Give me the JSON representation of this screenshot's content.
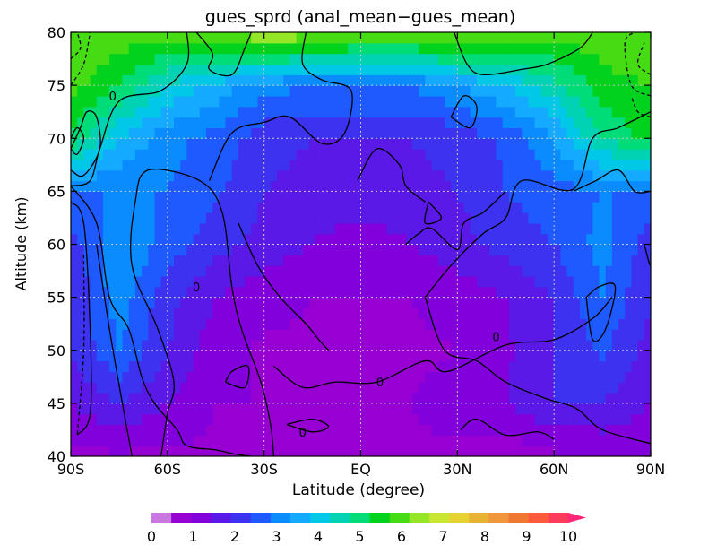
{
  "chart_data": {
    "type": "heatmap",
    "title": "gues_sprd (anal_mean−gues_mean)",
    "xlabel": "Latitude (degree)",
    "ylabel": "Altitude (km)",
    "xlim": [
      -90,
      90
    ],
    "ylim": [
      40,
      80
    ],
    "grid": true,
    "x_ticks": [
      {
        "value": -90,
        "label": "90S"
      },
      {
        "value": -60,
        "label": "60S"
      },
      {
        "value": -30,
        "label": "30S"
      },
      {
        "value": 0,
        "label": "EQ"
      },
      {
        "value": 30,
        "label": "30N"
      },
      {
        "value": 60,
        "label": "60N"
      },
      {
        "value": 90,
        "label": "90N"
      }
    ],
    "y_ticks": [
      40,
      45,
      50,
      55,
      60,
      65,
      70,
      75,
      80
    ],
    "colorbar": {
      "ticks": [
        "0",
        "1",
        "2",
        "3",
        "4",
        "5",
        "6",
        "7",
        "8",
        "9",
        "10"
      ],
      "extend": "max",
      "bins": 21,
      "colors": [
        "#c878e0",
        "#9600d2",
        "#8200dc",
        "#5a19e6",
        "#3c32f0",
        "#1e5aff",
        "#0a8cff",
        "#14aaff",
        "#00c8e6",
        "#00d2b4",
        "#00dc78",
        "#00d21e",
        "#46dc14",
        "#96e628",
        "#c8e632",
        "#e6d232",
        "#e6b432",
        "#f0963c",
        "#f07832",
        "#ff5a3c",
        "#ff3c5a",
        "#ff2878"
      ]
    },
    "field": {
      "latitudes": [
        -90,
        -75,
        -60,
        -45,
        -30,
        -15,
        0,
        15,
        30,
        45,
        60,
        75,
        90
      ],
      "altitudes": [
        40,
        45,
        50,
        55,
        60,
        65,
        70,
        75,
        80
      ],
      "values": [
        [
          0.9,
          0.9,
          0.9,
          0.9,
          0.9,
          0.9,
          0.9,
          0.9,
          0.9,
          0.6,
          0.9,
          1.0,
          1.0
        ],
        [
          1.5,
          2.0,
          1.5,
          1.0,
          1.0,
          1.0,
          1.0,
          1.0,
          1.2,
          1.5,
          2.0,
          2.0,
          1.5
        ],
        [
          2.0,
          3.0,
          2.0,
          1.2,
          0.9,
          0.9,
          0.9,
          0.9,
          1.0,
          1.4,
          2.0,
          2.6,
          1.8
        ],
        [
          2.0,
          3.3,
          2.2,
          1.5,
          1.2,
          1.0,
          1.0,
          1.0,
          1.2,
          1.5,
          2.0,
          3.0,
          2.0
        ],
        [
          2.2,
          3.5,
          2.8,
          2.2,
          1.8,
          1.5,
          1.2,
          1.5,
          1.8,
          2.2,
          2.5,
          3.2,
          2.2
        ],
        [
          3.0,
          3.0,
          3.0,
          2.6,
          2.0,
          1.8,
          1.8,
          1.8,
          2.0,
          2.5,
          2.8,
          3.0,
          3.0
        ],
        [
          5.5,
          4.0,
          3.2,
          2.8,
          2.2,
          2.0,
          2.0,
          2.0,
          2.2,
          2.6,
          3.5,
          5.0,
          5.8
        ],
        [
          6.2,
          5.5,
          4.5,
          3.8,
          3.2,
          3.0,
          3.0,
          3.0,
          3.5,
          4.0,
          4.8,
          5.8,
          6.0
        ],
        [
          6.5,
          6.3,
          6.2,
          6.5,
          7.0,
          6.8,
          6.5,
          6.5,
          6.8,
          6.5,
          6.2,
          6.3,
          6.5
        ]
      ]
    },
    "contour_labels": [
      {
        "text": "0",
        "x": -77,
        "y": 74
      },
      {
        "text": "0",
        "x": -51,
        "y": 56
      },
      {
        "text": "0",
        "x": 6,
        "y": 47
      },
      {
        "text": "0",
        "x": 42,
        "y": 51.3
      },
      {
        "text": "0",
        "x": -18,
        "y": 42.3
      }
    ],
    "contours": [
      [
        [
          -51,
          80
        ],
        [
          -46,
          78
        ],
        [
          -47,
          76.5
        ],
        [
          -40,
          76
        ],
        [
          -36,
          78.5
        ],
        [
          -34,
          80
        ]
      ],
      [
        [
          -90,
          65.5
        ],
        [
          -84,
          66
        ],
        [
          -81,
          69
        ],
        [
          -75,
          73.5
        ],
        [
          -62,
          74.5
        ],
        [
          -54,
          77
        ],
        [
          -54,
          80
        ]
      ],
      [
        [
          -90,
          65.5
        ],
        [
          -82,
          62
        ],
        [
          -78,
          55
        ],
        [
          -72,
          52
        ],
        [
          -68,
          47.5
        ],
        [
          -64,
          45
        ],
        [
          -57,
          42.5
        ],
        [
          -54,
          41
        ],
        [
          -45,
          40.6
        ],
        [
          -39,
          40.2
        ],
        [
          -34,
          40
        ]
      ],
      [
        [
          -90,
          64
        ],
        [
          -86,
          62
        ],
        [
          -84,
          52
        ],
        [
          -84,
          44
        ],
        [
          -88,
          42
        ]
      ],
      [
        [
          -71,
          40
        ],
        [
          -74,
          45
        ],
        [
          -78,
          52
        ],
        [
          -82,
          60
        ]
      ],
      [
        [
          -62,
          40
        ],
        [
          -60,
          44
        ],
        [
          -58,
          47
        ],
        [
          -63,
          52
        ],
        [
          -71,
          58
        ],
        [
          -70,
          64
        ],
        [
          -66,
          67
        ],
        [
          -50,
          66
        ],
        [
          -43,
          63
        ],
        [
          -40,
          56
        ],
        [
          -37,
          52
        ],
        [
          -31,
          47
        ],
        [
          -28,
          43
        ],
        [
          -27,
          40
        ]
      ],
      [
        [
          -47,
          66
        ],
        [
          -40,
          70.5
        ],
        [
          -30,
          71.5
        ],
        [
          -22,
          72
        ],
        [
          -12,
          69.5
        ],
        [
          -5,
          70.5
        ],
        [
          -3,
          74.5
        ],
        [
          -12,
          75.5
        ],
        [
          -18,
          77
        ],
        [
          -17,
          80
        ]
      ],
      [
        [
          -38,
          62
        ],
        [
          -32,
          58
        ],
        [
          -25,
          55
        ],
        [
          -17,
          52.5
        ],
        [
          -13,
          51
        ],
        [
          -10,
          50
        ]
      ],
      [
        [
          -27,
          48.5
        ],
        [
          -18,
          46.5
        ],
        [
          -8,
          47
        ],
        [
          5,
          47
        ],
        [
          20,
          49
        ],
        [
          27,
          48
        ],
        [
          45,
          50.5
        ],
        [
          60,
          51
        ],
        [
          72,
          53
        ],
        [
          78,
          55
        ]
      ],
      [
        [
          -23,
          43
        ],
        [
          -15,
          42.3
        ],
        [
          -10,
          42.8
        ],
        [
          -15,
          43.5
        ],
        [
          -23,
          43
        ]
      ],
      [
        [
          -42,
          47
        ],
        [
          -36,
          46.5
        ],
        [
          -35,
          48.5
        ],
        [
          -40,
          48
        ],
        [
          -42,
          47
        ]
      ],
      [
        [
          21,
          64
        ],
        [
          25,
          62.5
        ],
        [
          20,
          62
        ],
        [
          21,
          64
        ]
      ],
      [
        [
          14,
          60
        ],
        [
          18,
          61
        ],
        [
          22,
          61.5
        ],
        [
          30,
          59.5
        ],
        [
          32,
          62
        ],
        [
          38,
          63
        ],
        [
          45,
          65
        ]
      ],
      [
        [
          -1,
          66
        ],
        [
          5,
          69
        ],
        [
          12,
          67.5
        ],
        [
          14,
          65.5
        ],
        [
          20,
          64
        ]
      ],
      [
        [
          28,
          72
        ],
        [
          32,
          74
        ],
        [
          36,
          73
        ],
        [
          34,
          71
        ],
        [
          28,
          72
        ]
      ],
      [
        [
          29,
          80
        ],
        [
          33,
          77
        ],
        [
          38,
          76
        ],
        [
          50,
          76.5
        ],
        [
          58,
          77
        ],
        [
          68,
          78.5
        ],
        [
          72,
          80
        ]
      ],
      [
        [
          20,
          55
        ],
        [
          28,
          58
        ],
        [
          38,
          61
        ],
        [
          45,
          62.5
        ],
        [
          50,
          66
        ],
        [
          66,
          65.2
        ],
        [
          72,
          70
        ],
        [
          80,
          71
        ],
        [
          90,
          72.5
        ]
      ],
      [
        [
          20,
          55
        ],
        [
          26,
          50
        ],
        [
          36,
          49
        ],
        [
          45,
          47
        ],
        [
          57,
          45.5
        ],
        [
          67,
          44.5
        ],
        [
          75,
          42.5
        ],
        [
          90,
          41.2
        ]
      ],
      [
        [
          70,
          55
        ],
        [
          74,
          56
        ],
        [
          79,
          56
        ],
        [
          76,
          52
        ],
        [
          72,
          51
        ],
        [
          70,
          55
        ]
      ],
      [
        [
          66,
          65
        ],
        [
          73,
          66
        ],
        [
          80,
          67
        ],
        [
          85,
          65
        ],
        [
          90,
          65
        ]
      ],
      [
        [
          31,
          42.5
        ],
        [
          36,
          43.5
        ],
        [
          45,
          42
        ],
        [
          55,
          42.3
        ],
        [
          60,
          41.6
        ]
      ],
      [
        [
          88,
          60
        ],
        [
          90,
          58
        ],
        [
          90,
          61
        ]
      ],
      [
        [
          -90,
          69
        ],
        [
          -87,
          71
        ],
        [
          -85,
          72.5
        ],
        [
          -82,
          72
        ],
        [
          -81,
          69
        ],
        [
          -86,
          66.5
        ],
        [
          -90,
          67
        ]
      ],
      [
        [
          -90,
          70
        ],
        [
          -88,
          71
        ],
        [
          -86,
          70
        ],
        [
          -88,
          68.5
        ],
        [
          -90,
          69
        ]
      ]
    ],
    "dashed_contours": [
      [
        [
          -90,
          75
        ],
        [
          -86,
          77
        ],
        [
          -84,
          80
        ]
      ],
      [
        [
          -90,
          77.5
        ],
        [
          -87,
          78.5
        ],
        [
          -88,
          80
        ]
      ],
      [
        [
          -86,
          59
        ],
        [
          -86,
          50
        ],
        [
          -88,
          42
        ]
      ],
      [
        [
          90,
          74
        ],
        [
          84,
          75
        ],
        [
          82,
          79
        ],
        [
          85,
          80
        ]
      ],
      [
        [
          90,
          72
        ],
        [
          86,
          72.5
        ],
        [
          84,
          74
        ]
      ],
      [
        [
          90,
          76
        ],
        [
          86,
          77
        ],
        [
          88,
          79
        ]
      ]
    ]
  }
}
